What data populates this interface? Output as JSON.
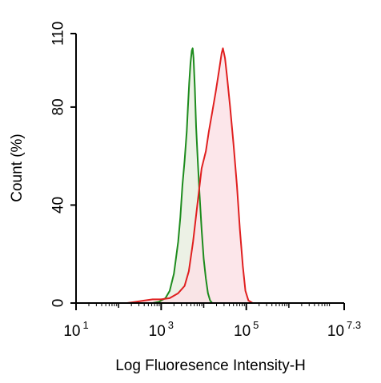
{
  "chart_data": {
    "type": "area",
    "xlabel": "Log Fluoresence Intensity-H",
    "ylabel": "Count  (%)",
    "x_scale": "log10",
    "xlim_log10": [
      1,
      7.3
    ],
    "ylim": [
      0,
      110
    ],
    "y_ticks": [
      0,
      40,
      80,
      110
    ],
    "x_ticks": [
      {
        "base": "10",
        "exp": "1",
        "log10": 1
      },
      {
        "base": "10",
        "exp": "3",
        "log10": 3
      },
      {
        "base": "10",
        "exp": "5",
        "log10": 5
      },
      {
        "base": "10",
        "exp": "7.3",
        "log10": 7.3
      }
    ],
    "grid": false,
    "series": [
      {
        "color": "#1e8c1e",
        "fill": "#e9eee1",
        "points_log10x_y": [
          [
            2.6,
            0
          ],
          [
            2.8,
            0
          ],
          [
            2.95,
            0.5
          ],
          [
            3.0,
            1
          ],
          [
            3.1,
            2
          ],
          [
            3.2,
            5
          ],
          [
            3.3,
            12
          ],
          [
            3.4,
            25
          ],
          [
            3.45,
            35
          ],
          [
            3.5,
            48
          ],
          [
            3.55,
            58
          ],
          [
            3.6,
            70
          ],
          [
            3.63,
            80
          ],
          [
            3.66,
            90
          ],
          [
            3.69,
            98
          ],
          [
            3.72,
            103
          ],
          [
            3.74,
            104
          ],
          [
            3.76,
            100
          ],
          [
            3.79,
            88
          ],
          [
            3.82,
            72
          ],
          [
            3.86,
            58
          ],
          [
            3.9,
            45
          ],
          [
            3.95,
            30
          ],
          [
            4.0,
            18
          ],
          [
            4.05,
            10
          ],
          [
            4.1,
            4
          ],
          [
            4.15,
            1
          ],
          [
            4.2,
            0
          ],
          [
            4.3,
            0
          ]
        ]
      },
      {
        "color": "#e02020",
        "fill": "#fbe2e6",
        "points_log10x_y": [
          [
            2.2,
            0
          ],
          [
            2.4,
            0.5
          ],
          [
            2.6,
            1
          ],
          [
            2.8,
            1.5
          ],
          [
            3.0,
            1.5
          ],
          [
            3.2,
            2
          ],
          [
            3.4,
            4
          ],
          [
            3.55,
            7
          ],
          [
            3.65,
            13
          ],
          [
            3.75,
            25
          ],
          [
            3.85,
            40
          ],
          [
            3.95,
            55
          ],
          [
            4.05,
            62
          ],
          [
            4.12,
            70
          ],
          [
            4.2,
            78
          ],
          [
            4.28,
            86
          ],
          [
            4.36,
            95
          ],
          [
            4.42,
            102
          ],
          [
            4.45,
            104
          ],
          [
            4.5,
            100
          ],
          [
            4.55,
            92
          ],
          [
            4.62,
            80
          ],
          [
            4.7,
            65
          ],
          [
            4.78,
            48
          ],
          [
            4.85,
            30
          ],
          [
            4.92,
            15
          ],
          [
            4.98,
            5
          ],
          [
            5.05,
            1
          ],
          [
            5.15,
            0
          ],
          [
            5.3,
            0
          ]
        ]
      }
    ]
  }
}
